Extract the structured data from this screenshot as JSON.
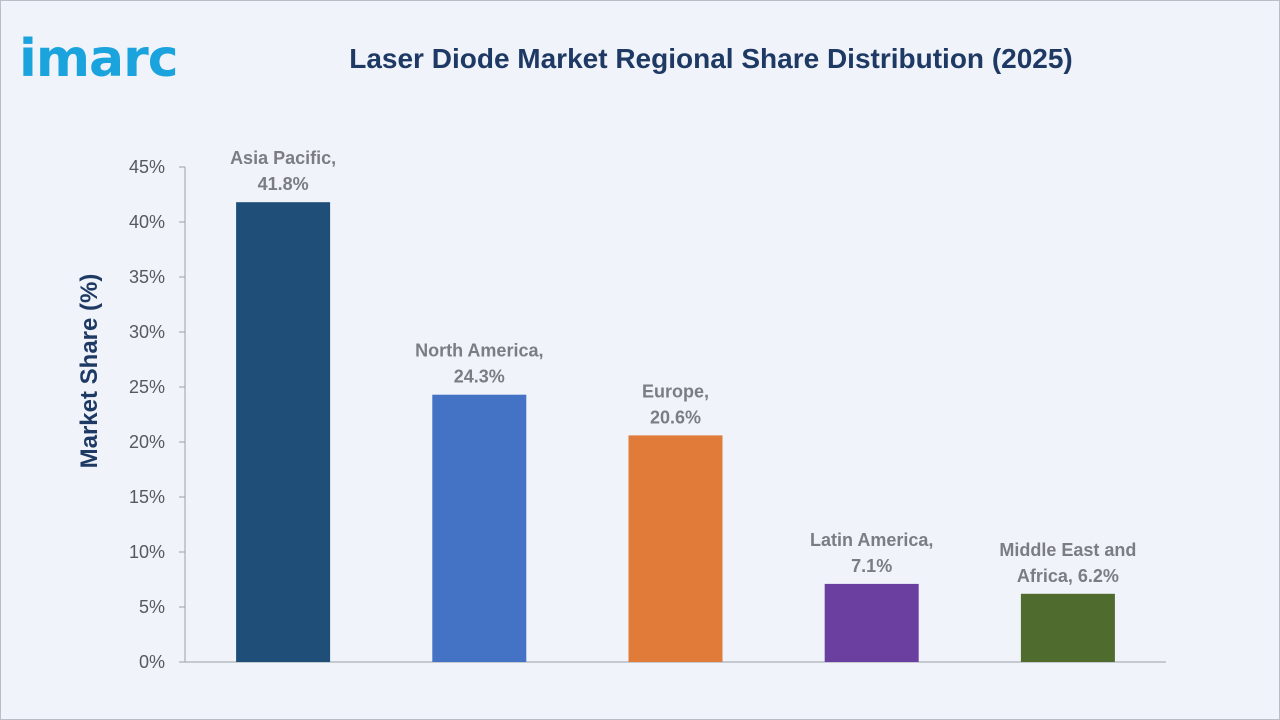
{
  "brand": {
    "logo_text": "imarc",
    "logo_color": "#1aa3dd"
  },
  "chart_data": {
    "type": "bar",
    "title": "Laser Diode Market Regional Share Distribution (2025)",
    "xlabel": "",
    "ylabel": "Market Share (%)",
    "categories": [
      "Asia Pacific",
      "North America",
      "Europe",
      "Latin America",
      "Middle East and Africa"
    ],
    "values": [
      41.8,
      24.3,
      20.6,
      7.1,
      6.2
    ],
    "data_labels": [
      [
        "Asia Pacific,",
        "41.8%"
      ],
      [
        "North America,",
        "24.3%"
      ],
      [
        "Europe,",
        "20.6%"
      ],
      [
        "Latin America,",
        "7.1%"
      ],
      [
        "Middle East and",
        "Africa, 6.2%"
      ]
    ],
    "colors": [
      "#1f4e79",
      "#4472c4",
      "#e07b39",
      "#6b3fa0",
      "#4f6b2e"
    ],
    "ylim": [
      0,
      45
    ],
    "yticks": [
      "0%",
      "5%",
      "10%",
      "15%",
      "20%",
      "25%",
      "30%",
      "35%",
      "40%",
      "45%"
    ],
    "ytick_values": [
      0,
      5,
      10,
      15,
      20,
      25,
      30,
      35,
      40,
      45
    ],
    "grid": false,
    "legend": "none"
  }
}
